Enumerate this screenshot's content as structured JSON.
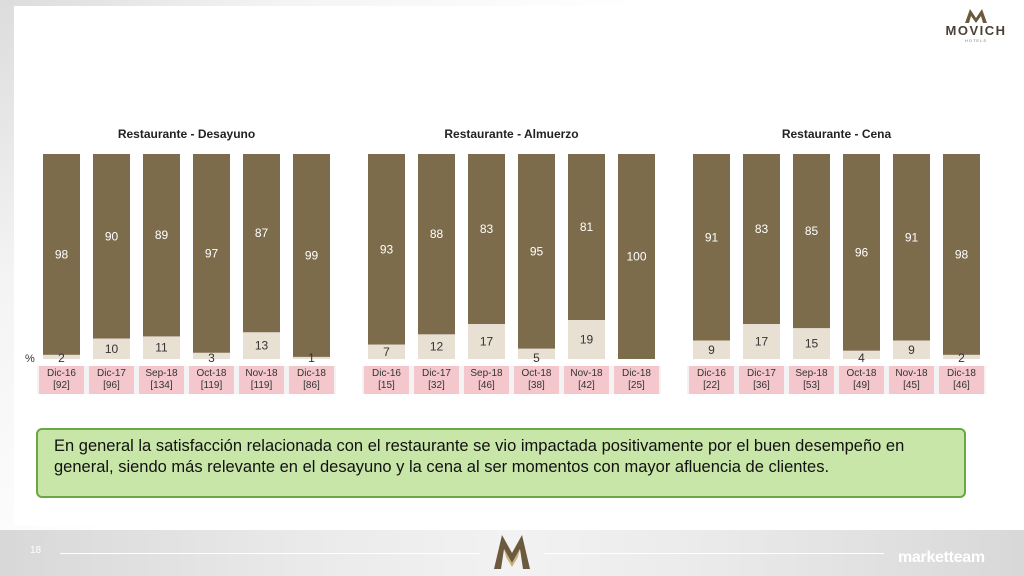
{
  "logo": {
    "brand": "MOVICH",
    "sub": "HOTELS"
  },
  "axis_unit": "%",
  "chart_data": [
    {
      "type": "bar",
      "stacked": true,
      "title": "Restaurante - Desayuno",
      "categories": [
        "Dic-16",
        "Dic-17",
        "Sep-18",
        "Oct-18",
        "Nov-18",
        "Dic-18"
      ],
      "bases": [
        "[92]",
        "[96]",
        "[134]",
        "[119]",
        "[119]",
        "[86]"
      ],
      "highlight_last": true,
      "series": [
        {
          "values": [
            98,
            90,
            89,
            97,
            87,
            99
          ],
          "color": "#7d6c4b"
        },
        {
          "values": [
            2,
            10,
            11,
            3,
            13,
            1
          ],
          "color": "#e9e0d4"
        }
      ],
      "ylim": [
        0,
        100
      ]
    },
    {
      "type": "bar",
      "stacked": true,
      "title": "Restaurante - Almuerzo",
      "categories": [
        "Dic-16",
        "Dic-17",
        "Sep-18",
        "Oct-18",
        "Nov-18",
        "Dic-18"
      ],
      "bases": [
        "[15]",
        "[32]",
        "[46]",
        "[38]",
        "[42]",
        "[25]"
      ],
      "highlight_last": true,
      "series": [
        {
          "values": [
            93,
            88,
            83,
            95,
            81,
            100
          ],
          "color": "#7d6c4b"
        },
        {
          "values": [
            7,
            12,
            17,
            5,
            19,
            0
          ],
          "color": "#e9e0d4"
        }
      ],
      "ylim": [
        0,
        100
      ]
    },
    {
      "type": "bar",
      "stacked": true,
      "title": "Restaurante - Cena",
      "categories": [
        "Dic-16",
        "Dic-17",
        "Sep-18",
        "Oct-18",
        "Nov-18",
        "Dic-18"
      ],
      "bases": [
        "[22]",
        "[36]",
        "[53]",
        "[49]",
        "[45]",
        "[46]"
      ],
      "highlight_last": true,
      "series": [
        {
          "values": [
            91,
            83,
            85,
            96,
            91,
            98
          ],
          "color": "#7d6c4b"
        },
        {
          "values": [
            9,
            17,
            15,
            4,
            9,
            2
          ],
          "color": "#e9e0d4"
        }
      ],
      "ylim": [
        0,
        100
      ]
    }
  ],
  "note": "En general la satisfacción relacionada con el restaurante se vio impactada positivamente por el buen desempeño en general, siendo más relevante en el desayuno y la cena al ser momentos con mayor afluencia de clientes.",
  "footer": {
    "page": "18",
    "brand": "marketteam"
  }
}
